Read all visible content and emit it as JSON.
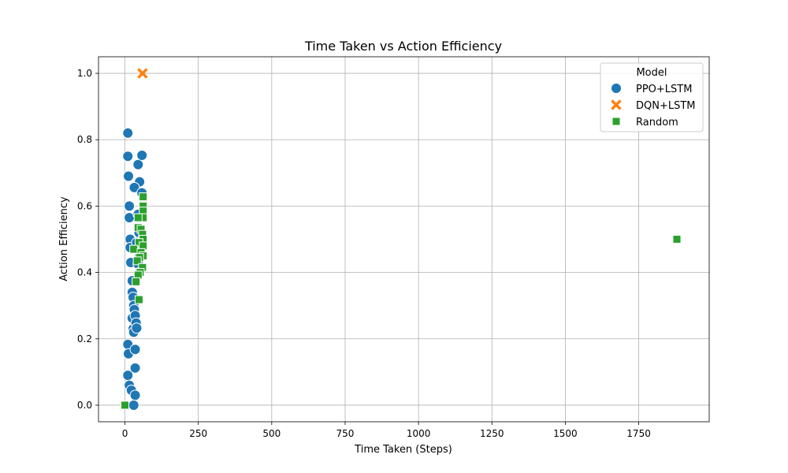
{
  "chart_data": {
    "type": "scatter",
    "title": "Time Taken vs Action Efficiency",
    "xlabel": "Time Taken (Steps)",
    "ylabel": "Action Efficiency",
    "xlim": [
      -90,
      1990
    ],
    "ylim": [
      -0.05,
      1.05
    ],
    "xticks": [
      0,
      250,
      500,
      750,
      1000,
      1250,
      1500,
      1750
    ],
    "yticks": [
      0.0,
      0.2,
      0.4,
      0.6,
      0.8,
      1.0
    ],
    "xtick_labels": [
      "0",
      "250",
      "500",
      "750",
      "1000",
      "1250",
      "1500",
      "1750"
    ],
    "ytick_labels": [
      "0.0",
      "0.2",
      "0.4",
      "0.6",
      "0.8",
      "1.0"
    ],
    "grid": true,
    "legend": {
      "title": "Model",
      "position": "top-right"
    },
    "series": [
      {
        "name": "PPO+LSTM",
        "color": "#1f77b4",
        "marker": "circle",
        "points": [
          [
            10,
            0.82
          ],
          [
            10,
            0.75
          ],
          [
            12,
            0.69
          ],
          [
            15,
            0.6
          ],
          [
            15,
            0.565
          ],
          [
            18,
            0.5
          ],
          [
            18,
            0.475
          ],
          [
            20,
            0.43
          ],
          [
            25,
            0.375
          ],
          [
            25,
            0.34
          ],
          [
            28,
            0.325
          ],
          [
            30,
            0.3
          ],
          [
            25,
            0.262
          ],
          [
            28,
            0.23
          ],
          [
            30,
            0.22
          ],
          [
            32,
            0.288
          ],
          [
            35,
            0.27
          ],
          [
            38,
            0.248
          ],
          [
            40,
            0.232
          ],
          [
            10,
            0.183
          ],
          [
            12,
            0.155
          ],
          [
            35,
            0.168
          ],
          [
            35,
            0.112
          ],
          [
            10,
            0.09
          ],
          [
            15,
            0.06
          ],
          [
            22,
            0.045
          ],
          [
            35,
            0.03
          ],
          [
            30,
            0.0
          ],
          [
            45,
            0.725
          ],
          [
            50,
            0.673
          ],
          [
            58,
            0.753
          ],
          [
            32,
            0.656
          ],
          [
            58,
            0.64
          ],
          [
            45,
            0.575
          ],
          [
            48,
            0.52
          ],
          [
            50,
            0.45
          ],
          [
            40,
            0.49
          ],
          [
            45,
            0.425
          ],
          [
            50,
            0.4
          ]
        ]
      },
      {
        "name": "DQN+LSTM",
        "color": "#ff7f0e",
        "marker": "x",
        "points": [
          [
            60,
            1.0
          ]
        ]
      },
      {
        "name": "Random",
        "color": "#2ca02c",
        "marker": "square",
        "points": [
          [
            62,
            0.628
          ],
          [
            62,
            0.6
          ],
          [
            62,
            0.585
          ],
          [
            62,
            0.565
          ],
          [
            45,
            0.565
          ],
          [
            45,
            0.535
          ],
          [
            55,
            0.53
          ],
          [
            60,
            0.515
          ],
          [
            62,
            0.5
          ],
          [
            48,
            0.49
          ],
          [
            62,
            0.48
          ],
          [
            30,
            0.47
          ],
          [
            55,
            0.46
          ],
          [
            62,
            0.45
          ],
          [
            50,
            0.445
          ],
          [
            42,
            0.435
          ],
          [
            60,
            0.415
          ],
          [
            52,
            0.4
          ],
          [
            45,
            0.392
          ],
          [
            38,
            0.372
          ],
          [
            48,
            0.318
          ],
          [
            0,
            0.0
          ],
          [
            1880,
            0.5
          ]
        ]
      }
    ]
  }
}
